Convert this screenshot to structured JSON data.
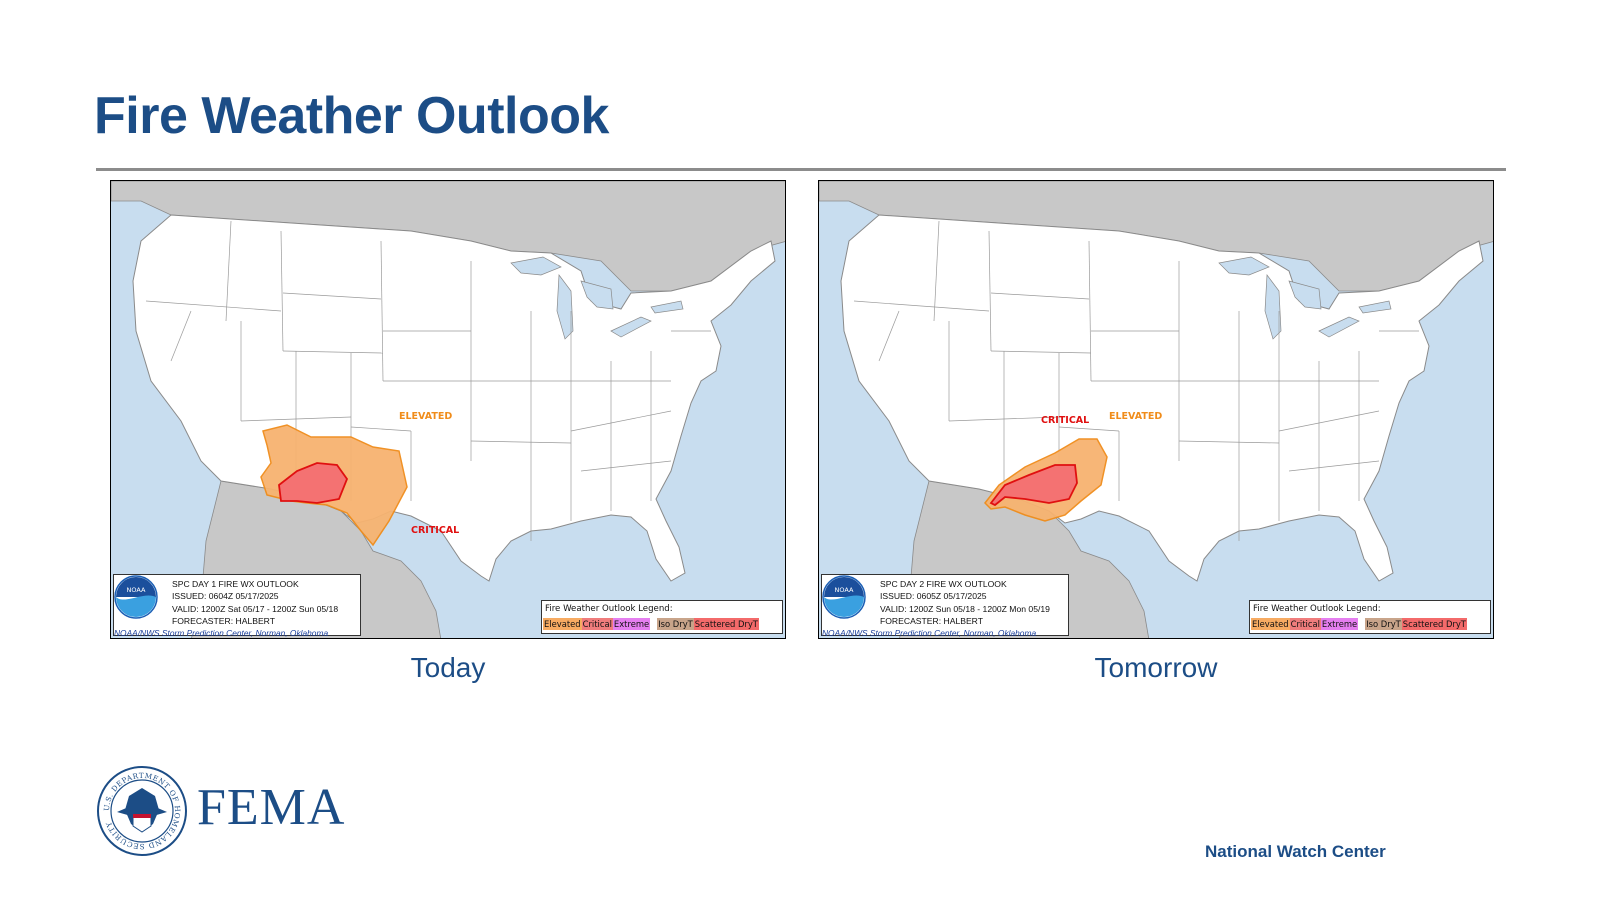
{
  "title": "Fire Weather Outlook",
  "maps": [
    {
      "caption": "Today",
      "info_lines": [
        "SPC DAY 1 FIRE WX OUTLOOK",
        "ISSUED: 0604Z 05/17/2025",
        "VALID: 1200Z Sat 05/17 - 1200Z Sun 05/18",
        "FORECASTER: HALBERT"
      ],
      "credit": "NOAA/NWS Storm Prediction Center, Norman, Oklahoma",
      "area_labels": {
        "elevated": "ELEVATED",
        "critical": "CRITICAL"
      }
    },
    {
      "caption": "Tomorrow",
      "info_lines": [
        "SPC DAY 2 FIRE WX OUTLOOK",
        "ISSUED: 0605Z 05/17/2025",
        "VALID: 1200Z Sun 05/18 - 1200Z Mon 05/19",
        "FORECASTER: HALBERT"
      ],
      "credit": "NOAA/NWS Storm Prediction Center, Norman, Oklahoma",
      "area_labels": {
        "elevated": "ELEVATED",
        "critical": "CRITICAL"
      }
    }
  ],
  "legend": {
    "title": "Fire Weather Outlook Legend:",
    "items": [
      {
        "label": "Elevated",
        "color": "#f7ab62"
      },
      {
        "label": "Critical",
        "color": "#f07c7c"
      },
      {
        "label": "Extreme",
        "color": "#e57ef0"
      },
      {
        "label": "Iso DryT",
        "color": "#c8a48a"
      },
      {
        "label": "Scattered DryT",
        "color": "#f36a6a"
      }
    ]
  },
  "noaa_logo_text": "NOAA",
  "colors": {
    "title": "#1c4d86",
    "elevated_fill": "#f7b370",
    "elevated_label": "#f08c1a",
    "critical_fill": "#f47272",
    "critical_label": "#e01010",
    "water": "#c8ddef",
    "land_outside": "#c8c8c8"
  },
  "footer": {
    "agency": "FEMA",
    "seal_text": "U.S. DEPARTMENT OF HOMELAND SECURITY",
    "unit": "National Watch Center"
  }
}
